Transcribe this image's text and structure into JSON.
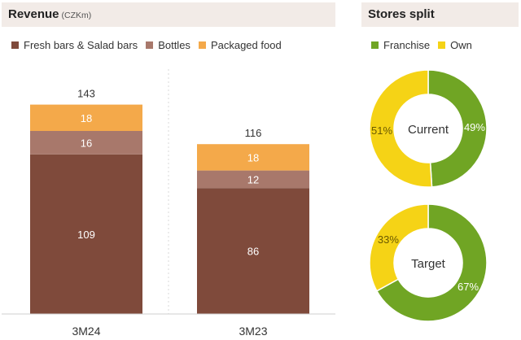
{
  "revenue": {
    "title": "Revenue",
    "unit": "(CZKm)"
  },
  "stores": {
    "title": "Stores split"
  },
  "colors": {
    "fresh": "#7f4a3b",
    "bottles": "#a8786b",
    "packaged": "#f4a94a",
    "franchise": "#70a524",
    "own": "#f5d316",
    "header_bg": "#f2ebe7"
  },
  "chart_data": [
    {
      "type": "bar",
      "stacked": true,
      "title": "Revenue (CZKm)",
      "categories": [
        "3M24",
        "3M23"
      ],
      "series": [
        {
          "name": "Fresh bars & Salad bars",
          "values": [
            109,
            86
          ]
        },
        {
          "name": "Bottles",
          "values": [
            16,
            12
          ]
        },
        {
          "name": "Packaged food",
          "values": [
            18,
            18
          ]
        }
      ],
      "totals": [
        143,
        116
      ],
      "legend_position": "top-left"
    },
    {
      "type": "pie",
      "donut": true,
      "title": "Stores split",
      "label": "Current",
      "slices": [
        {
          "name": "Franchise",
          "value": 49,
          "label": "49%"
        },
        {
          "name": "Own",
          "value": 51,
          "label": "51%"
        }
      ]
    },
    {
      "type": "pie",
      "donut": true,
      "title": "Stores split",
      "label": "Target",
      "slices": [
        {
          "name": "Franchise",
          "value": 67,
          "label": "67%"
        },
        {
          "name": "Own",
          "value": 33,
          "label": "33%"
        }
      ]
    }
  ]
}
